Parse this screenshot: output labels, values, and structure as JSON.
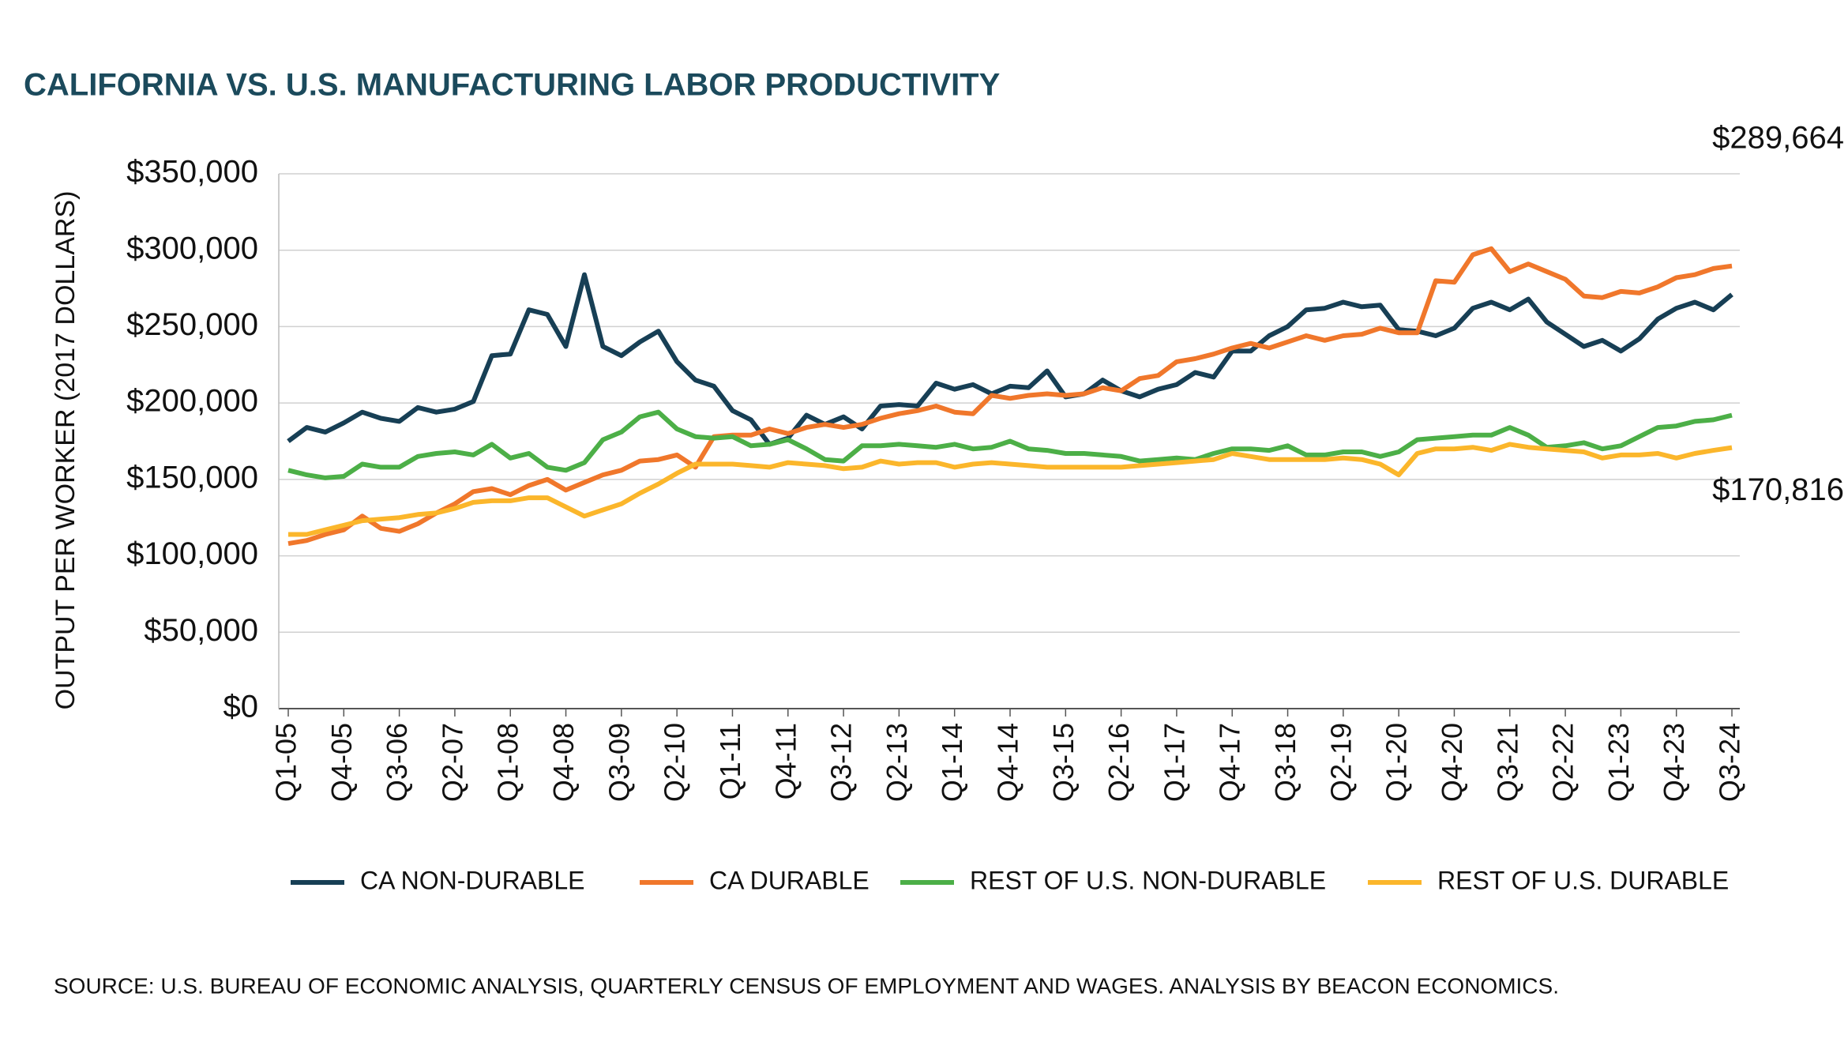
{
  "chart_data": {
    "type": "line",
    "title": "CALIFORNIA VS. U.S. MANUFACTURING LABOR PRODUCTIVITY",
    "y_label": "OUTPUT PER WORKER (2017 DOLLARS)",
    "source": "SOURCE: U.S. BUREAU OF ECONOMIC ANALYSIS, QUARTERLY CENSUS OF EMPLOYMENT AND WAGES. ANALYSIS BY BEACON ECONOMICS.",
    "categories": [
      "Q1-05",
      null,
      null,
      "Q4-05",
      null,
      null,
      "Q3-06",
      null,
      null,
      "Q2-07",
      null,
      null,
      "Q1-08",
      null,
      null,
      "Q4-08",
      null,
      null,
      "Q3-09",
      null,
      null,
      "Q2-10",
      null,
      null,
      "Q1-11",
      null,
      null,
      "Q4-11",
      null,
      null,
      "Q3-12",
      null,
      null,
      "Q2-13",
      null,
      null,
      "Q1-14",
      null,
      null,
      "Q4-14",
      null,
      null,
      "Q3-15",
      null,
      null,
      "Q2-16",
      null,
      null,
      "Q1-17",
      null,
      null,
      "Q4-17",
      null,
      null,
      "Q3-18",
      null,
      null,
      "Q2-19",
      null,
      null,
      "Q1-20",
      null,
      null,
      "Q4-20",
      null,
      null,
      "Q3-21",
      null,
      null,
      "Q2-22",
      null,
      null,
      "Q1-23",
      null,
      null,
      "Q4-23",
      null,
      null,
      "Q3-24"
    ],
    "ylim": [
      0,
      350000
    ],
    "yticks": [
      {
        "value": 0,
        "label": "$0"
      },
      {
        "value": 50000,
        "label": "$50,000"
      },
      {
        "value": 100000,
        "label": "$100,000"
      },
      {
        "value": 150000,
        "label": "$150,000"
      },
      {
        "value": 200000,
        "label": "$200,000"
      },
      {
        "value": 250000,
        "label": "$250,000"
      },
      {
        "value": 300000,
        "label": "$300,000"
      },
      {
        "value": 350000,
        "label": "$350,000"
      }
    ],
    "grid": true,
    "legend": "bottom",
    "series": [
      {
        "name": "CA NON-DURABLE",
        "color": "#173f55",
        "values": [
          175000,
          184000,
          181000,
          187000,
          194000,
          190000,
          188000,
          197000,
          194000,
          196000,
          201000,
          231000,
          232000,
          261000,
          258000,
          237000,
          284000,
          237000,
          231000,
          240000,
          247000,
          227000,
          215000,
          211000,
          195000,
          189000,
          173000,
          177000,
          192000,
          186000,
          191000,
          183000,
          198000,
          199000,
          198000,
          213000,
          209000,
          212000,
          206000,
          211000,
          210000,
          221000,
          204000,
          206000,
          215000,
          208000,
          204000,
          209000,
          212000,
          220000,
          217000,
          234000,
          234000,
          244000,
          250000,
          261000,
          262000,
          266000,
          263000,
          264000,
          248000,
          247000,
          244000,
          249000,
          262000,
          266000,
          261000,
          268000,
          253000,
          245000,
          237000,
          241000,
          234000,
          242000,
          255000,
          262000,
          266000,
          261000,
          271000
        ]
      },
      {
        "name": "CA DURABLE",
        "color": "#f0772b",
        "values": [
          108000,
          110000,
          114000,
          117000,
          126000,
          118000,
          116000,
          121000,
          128000,
          134000,
          142000,
          144000,
          140000,
          146000,
          150000,
          143000,
          148000,
          153000,
          156000,
          162000,
          163000,
          166000,
          158000,
          178000,
          179000,
          179000,
          183000,
          180000,
          184000,
          186000,
          184000,
          186000,
          190000,
          193000,
          195000,
          198000,
          194000,
          193000,
          205000,
          203000,
          205000,
          206000,
          205000,
          206000,
          210000,
          208000,
          216000,
          218000,
          227000,
          229000,
          232000,
          236000,
          239000,
          236000,
          240000,
          244000,
          241000,
          244000,
          245000,
          249000,
          246000,
          246000,
          280000,
          279000,
          297000,
          301000,
          286000,
          291000,
          286000,
          281000,
          270000,
          269000,
          273000,
          272000,
          276000,
          282000,
          284000,
          288000,
          289664
        ],
        "value_labels": [
          null,
          null,
          null,
          null,
          null,
          null,
          null,
          null,
          null,
          null,
          null,
          null,
          null,
          null,
          null,
          null,
          null,
          null,
          null,
          null,
          null,
          null,
          null,
          null,
          null,
          null,
          null,
          null,
          null,
          null,
          null,
          null,
          null,
          null,
          null,
          null,
          null,
          null,
          null,
          null,
          null,
          null,
          null,
          null,
          null,
          null,
          null,
          null,
          null,
          null,
          null,
          null,
          null,
          null,
          null,
          null,
          null,
          null,
          null,
          null,
          null,
          null,
          null,
          null,
          null,
          null,
          null,
          null,
          null,
          null,
          null,
          null,
          null,
          null,
          null,
          null,
          null,
          null,
          "$289,664"
        ]
      },
      {
        "name": "REST OF U.S. NON-DURABLE",
        "color": "#4caf47",
        "values": [
          156000,
          153000,
          151000,
          152000,
          160000,
          158000,
          158000,
          165000,
          167000,
          168000,
          166000,
          173000,
          164000,
          167000,
          158000,
          156000,
          161000,
          176000,
          181000,
          191000,
          194000,
          183000,
          178000,
          177000,
          178000,
          172000,
          173000,
          176000,
          170000,
          163000,
          162000,
          172000,
          172000,
          173000,
          172000,
          171000,
          173000,
          170000,
          171000,
          175000,
          170000,
          169000,
          167000,
          167000,
          166000,
          165000,
          162000,
          163000,
          164000,
          163000,
          167000,
          170000,
          170000,
          169000,
          172000,
          166000,
          166000,
          168000,
          168000,
          165000,
          168000,
          176000,
          177000,
          178000,
          179000,
          179000,
          184000,
          179000,
          171000,
          172000,
          174000,
          170000,
          172000,
          178000,
          184000,
          185000,
          188000,
          189000,
          192000
        ]
      },
      {
        "name": "REST OF U.S. DURABLE",
        "color": "#fbb62b",
        "values": [
          114000,
          114000,
          117000,
          120000,
          123000,
          124000,
          125000,
          127000,
          128000,
          131000,
          135000,
          136000,
          136000,
          138000,
          138000,
          132000,
          126000,
          130000,
          134000,
          141000,
          147000,
          154000,
          160000,
          160000,
          160000,
          159000,
          158000,
          161000,
          160000,
          159000,
          157000,
          158000,
          162000,
          160000,
          161000,
          161000,
          158000,
          160000,
          161000,
          160000,
          159000,
          158000,
          158000,
          158000,
          158000,
          158000,
          159000,
          160000,
          161000,
          162000,
          163000,
          167000,
          165000,
          163000,
          163000,
          163000,
          163000,
          164000,
          163000,
          160000,
          153000,
          167000,
          170000,
          170000,
          171000,
          169000,
          173000,
          171000,
          170000,
          169000,
          168000,
          164000,
          166000,
          166000,
          167000,
          164000,
          167000,
          169000,
          170816
        ],
        "value_labels": [
          null,
          null,
          null,
          null,
          null,
          null,
          null,
          null,
          null,
          null,
          null,
          null,
          null,
          null,
          null,
          null,
          null,
          null,
          null,
          null,
          null,
          null,
          null,
          null,
          null,
          null,
          null,
          null,
          null,
          null,
          null,
          null,
          null,
          null,
          null,
          null,
          null,
          null,
          null,
          null,
          null,
          null,
          null,
          null,
          null,
          null,
          null,
          null,
          null,
          null,
          null,
          null,
          null,
          null,
          null,
          null,
          null,
          null,
          null,
          null,
          null,
          null,
          null,
          null,
          null,
          null,
          null,
          null,
          null,
          null,
          null,
          null,
          null,
          null,
          null,
          null,
          null,
          null,
          "$170,816"
        ]
      }
    ]
  }
}
